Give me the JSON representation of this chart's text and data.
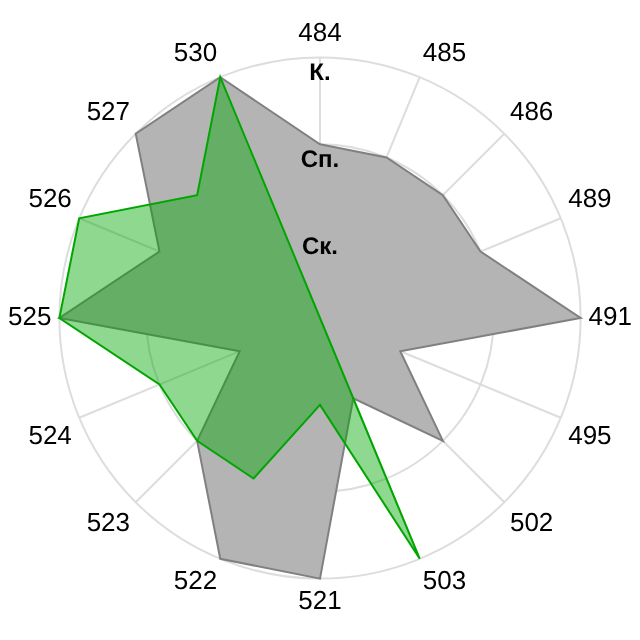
{
  "chart_data": {
    "type": "radar",
    "categories": [
      "484",
      "485",
      "486",
      "489",
      "491",
      "495",
      "502",
      "503",
      "521",
      "522",
      "523",
      "524",
      "525",
      "526",
      "527",
      "530"
    ],
    "series": [
      {
        "color": "#808080",
        "values": [
          2,
          2,
          2,
          2,
          3,
          1,
          2,
          1,
          3,
          3,
          2,
          1,
          3,
          2,
          3,
          3
        ]
      },
      {
        "color": "#00a600",
        "values": [
          0,
          0,
          0,
          0,
          0,
          0,
          0,
          3,
          1,
          2,
          2,
          2,
          3,
          3,
          2,
          3
        ]
      }
    ],
    "ylim": [
      0,
      3
    ],
    "yticks": [
      {
        "value": 1,
        "label": "Ск."
      },
      {
        "value": 2,
        "label": "Сп."
      },
      {
        "value": 3,
        "label": "К."
      }
    ],
    "grid": true,
    "legend": false
  }
}
